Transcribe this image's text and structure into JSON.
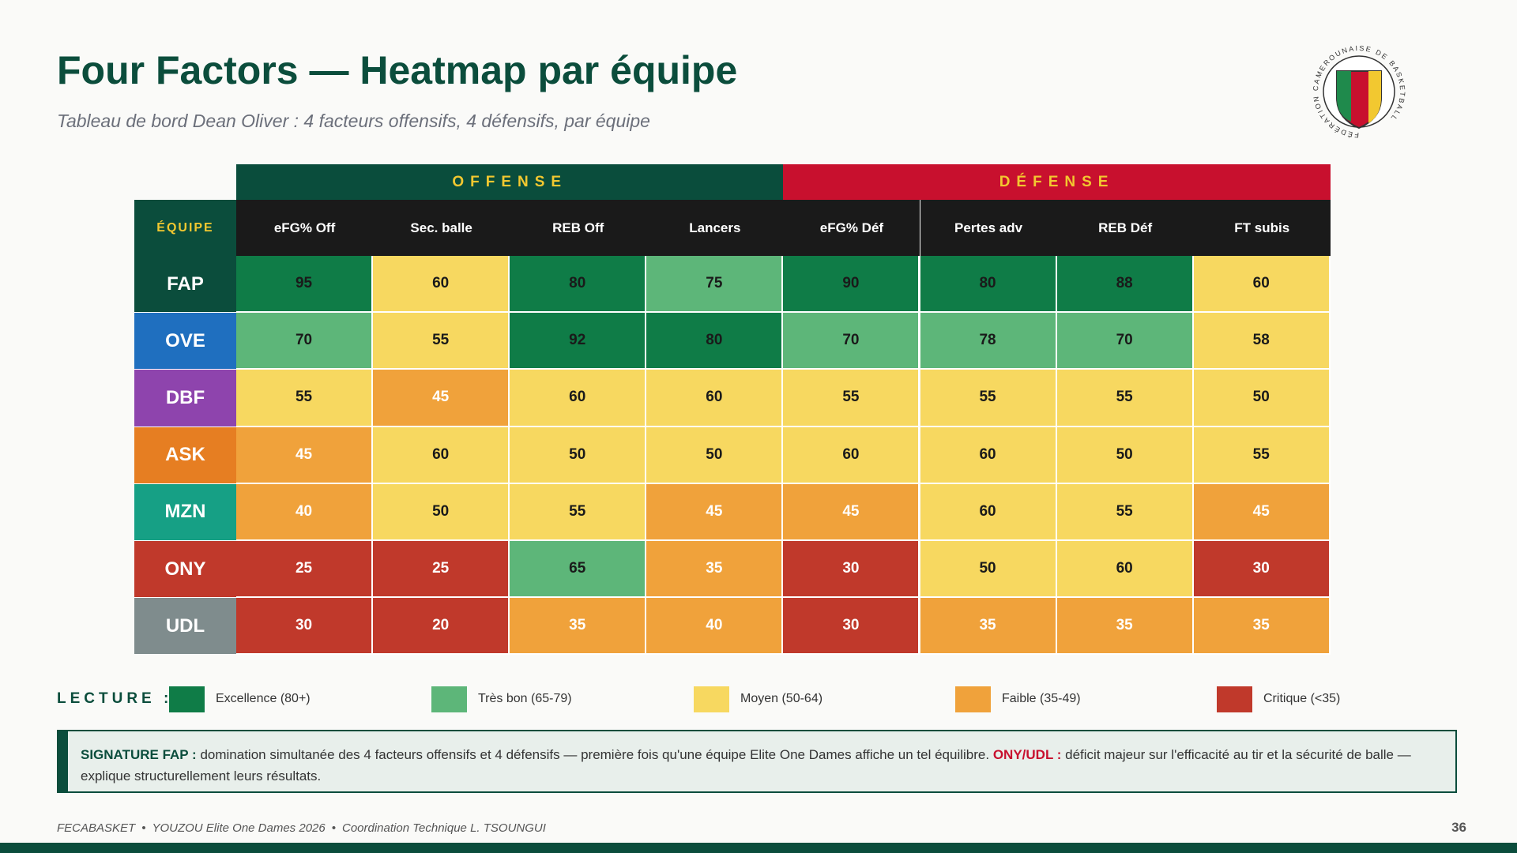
{
  "header": {
    "title": "Four Factors — Heatmap par équipe",
    "subtitle": "Tableau de bord Dean Oliver : 4 facteurs offensifs, 4 défensifs, par équipe"
  },
  "logo": {
    "text": "FÉDÉRATION CAMEROUNAISE DE BASKETBALL"
  },
  "table": {
    "corner": "ÉQUIPE",
    "groups": [
      {
        "label": "OFFENSE",
        "color": "#0a4d3c",
        "columns": [
          "eFG% Off",
          "Sec. balle",
          "REB Off",
          "Lancers"
        ]
      },
      {
        "label": "DÉFENSE",
        "color": "#c8102e",
        "columns": [
          "eFG% Déf",
          "Pertes adv",
          "REB Déf",
          "FT subis"
        ]
      }
    ],
    "rows": [
      {
        "team": "FAP",
        "color": "#0b4d3c",
        "values": [
          95,
          60,
          80,
          75,
          90,
          80,
          88,
          60
        ]
      },
      {
        "team": "OVE",
        "color": "#1f6fbf",
        "values": [
          70,
          55,
          92,
          80,
          70,
          78,
          70,
          58
        ]
      },
      {
        "team": "DBF",
        "color": "#8e44ad",
        "values": [
          55,
          45,
          60,
          60,
          55,
          55,
          55,
          50
        ]
      },
      {
        "team": "ASK",
        "color": "#e67e22",
        "values": [
          45,
          60,
          50,
          50,
          60,
          60,
          50,
          55
        ]
      },
      {
        "team": "MZN",
        "color": "#16a085",
        "values": [
          40,
          50,
          55,
          45,
          45,
          60,
          55,
          45
        ]
      },
      {
        "team": "ONY",
        "color": "#c0392b",
        "values": [
          25,
          25,
          65,
          35,
          30,
          50,
          60,
          30
        ]
      },
      {
        "team": "UDL",
        "color": "#7f8c8d",
        "values": [
          30,
          20,
          35,
          40,
          30,
          35,
          35,
          35
        ]
      }
    ]
  },
  "legend": {
    "title": "LECTURE :",
    "items": [
      {
        "label": "Excellence (80+)",
        "color": "#0f7c47",
        "text_color": "#1a1a1a",
        "min": 80
      },
      {
        "label": "Très bon (65-79)",
        "color": "#5db679",
        "text_color": "#1a1a1a",
        "min": 65
      },
      {
        "label": "Moyen (50-64)",
        "color": "#f7d860",
        "text_color": "#1a1a1a",
        "min": 50
      },
      {
        "label": "Faible (35-49)",
        "color": "#f0a23b",
        "text_color": "#ffffff",
        "min": 35
      },
      {
        "label": "Critique (<35)",
        "color": "#c0392b",
        "text_color": "#ffffff"
      }
    ]
  },
  "note": {
    "parts": [
      {
        "text": "SIGNATURE FAP :",
        "bold": true,
        "color": "#0b4d3c"
      },
      {
        "text": "domination simultanée des 4 facteurs offensifs et 4 défensifs — première fois qu'une équipe Elite One Dames affiche un tel équilibre."
      },
      {
        "text": "ONY/UDL :",
        "bold": true,
        "color": "#c8102e"
      },
      {
        "text": "déficit majeur sur l'efficacité au tir et la sécurité de balle — explique structurellement leurs résultats."
      }
    ]
  },
  "footer": {
    "parts": [
      "FECABASKET",
      "YOUZOU Elite One Dames 2026",
      "Coordination Technique L. TSOUNGUI"
    ],
    "page": 36
  }
}
